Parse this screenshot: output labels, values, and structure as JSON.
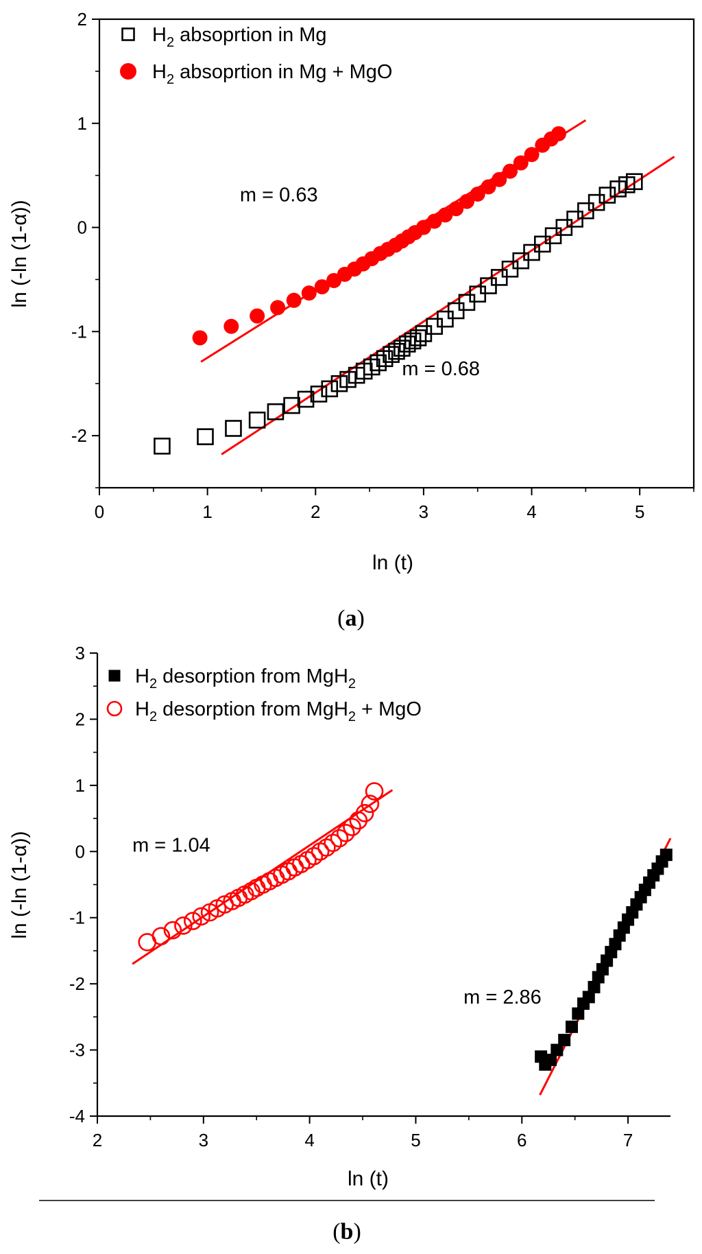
{
  "chart_data": [
    {
      "type": "scatter",
      "panel_label": {
        "open": "(",
        "letter": "a",
        "close": ")"
      },
      "xlabel": "ln (t)",
      "ylabel": "ln (-ln (1-α))",
      "xlim": [
        0,
        5.5
      ],
      "ylim": [
        -2.5,
        2
      ],
      "xticks": [
        0,
        1,
        2,
        3,
        4,
        5
      ],
      "yticks": [
        -2,
        -1,
        0,
        1,
        2
      ],
      "xtick_labels": [
        "0",
        "1",
        "2",
        "3",
        "4",
        "5"
      ],
      "ytick_labels": [
        "-2",
        "-1",
        "0",
        "1",
        "2"
      ],
      "legend_position": "top-left",
      "series": [
        {
          "name": "H2 absoprtion in Mg",
          "legend": {
            "pre": "H",
            "sub": "2",
            "post": " absoprtion in Mg"
          },
          "marker": "open-square",
          "color": "#000000",
          "x": [
            0.58,
            0.98,
            1.24,
            1.46,
            1.63,
            1.78,
            1.91,
            2.03,
            2.13,
            2.22,
            2.3,
            2.38,
            2.45,
            2.52,
            2.58,
            2.64,
            2.7,
            2.75,
            2.8,
            2.85,
            2.9,
            2.95,
            3.0,
            3.1,
            3.2,
            3.3,
            3.4,
            3.5,
            3.6,
            3.7,
            3.8,
            3.9,
            4.0,
            4.1,
            4.2,
            4.3,
            4.4,
            4.5,
            4.6,
            4.7,
            4.8,
            4.88,
            4.95
          ],
          "y": [
            -2.1,
            -2.01,
            -1.93,
            -1.85,
            -1.77,
            -1.71,
            -1.65,
            -1.6,
            -1.55,
            -1.5,
            -1.46,
            -1.42,
            -1.38,
            -1.34,
            -1.3,
            -1.26,
            -1.22,
            -1.19,
            -1.16,
            -1.12,
            -1.09,
            -1.06,
            -1.02,
            -0.95,
            -0.88,
            -0.8,
            -0.72,
            -0.64,
            -0.56,
            -0.48,
            -0.4,
            -0.32,
            -0.24,
            -0.16,
            -0.08,
            0.0,
            0.08,
            0.16,
            0.24,
            0.31,
            0.37,
            0.41,
            0.44
          ]
        },
        {
          "name": "H2 absoprtion in Mg + MgO",
          "legend": {
            "pre": "H",
            "sub": "2",
            "post": " absoprtion in Mg + MgO"
          },
          "marker": "filled-circle",
          "color": "#ff0000",
          "x": [
            0.93,
            1.22,
            1.46,
            1.65,
            1.8,
            1.94,
            2.06,
            2.17,
            2.27,
            2.36,
            2.44,
            2.52,
            2.6,
            2.67,
            2.74,
            2.8,
            2.86,
            2.92,
            3.0,
            3.1,
            3.2,
            3.3,
            3.4,
            3.5,
            3.6,
            3.7,
            3.8,
            3.9,
            4.0,
            4.1,
            4.18,
            4.25
          ],
          "y": [
            -1.06,
            -0.95,
            -0.85,
            -0.77,
            -0.7,
            -0.63,
            -0.57,
            -0.51,
            -0.45,
            -0.4,
            -0.35,
            -0.3,
            -0.25,
            -0.21,
            -0.17,
            -0.13,
            -0.09,
            -0.05,
            0.0,
            0.06,
            0.12,
            0.18,
            0.25,
            0.32,
            0.39,
            0.46,
            0.54,
            0.62,
            0.7,
            0.79,
            0.85,
            0.9
          ]
        }
      ],
      "fit_lines": [
        {
          "series": "H2 absoprtion in Mg",
          "color": "#ff0000",
          "x": [
            1.13,
            5.32
          ],
          "y": [
            -2.18,
            0.68
          ]
        },
        {
          "series": "H2 absoprtion in Mg + MgO",
          "color": "#ff0000",
          "x": [
            0.94,
            4.5
          ],
          "y": [
            -1.29,
            1.03
          ]
        }
      ],
      "annotations": [
        {
          "text": "m = 0.63",
          "x": 1.3,
          "y": 0.25
        },
        {
          "text": "m = 0.68",
          "x": 2.8,
          "y": -1.42
        }
      ]
    },
    {
      "type": "scatter",
      "panel_label": {
        "open": "(",
        "letter": "b",
        "close": ")"
      },
      "xlabel": "ln (t)",
      "ylabel": "ln (-ln (1-α))",
      "xlim": [
        2,
        7.4
      ],
      "ylim": [
        -4,
        3
      ],
      "xticks": [
        2,
        3,
        4,
        5,
        6,
        7
      ],
      "yticks": [
        -4,
        -3,
        -2,
        -1,
        0,
        1,
        2,
        3
      ],
      "xtick_labels": [
        "2",
        "3",
        "4",
        "5",
        "6",
        "7"
      ],
      "ytick_labels": [
        "-4",
        "-3",
        "-2",
        "-1",
        "0",
        "1",
        "2",
        "3"
      ],
      "legend_position": "top-left",
      "series": [
        {
          "name": "H2 desorption from MgH2",
          "legend": {
            "pre": "H",
            "sub": "2",
            "post": " desorption from MgH",
            "sub2": "2",
            "post2": ""
          },
          "marker": "filled-square",
          "color": "#000000",
          "x": [
            6.18,
            6.22,
            6.27,
            6.33,
            6.4,
            6.47,
            6.53,
            6.58,
            6.63,
            6.68,
            6.72,
            6.76,
            6.8,
            6.84,
            6.88,
            6.92,
            6.96,
            7.0,
            7.04,
            7.08,
            7.12,
            7.16,
            7.2,
            7.24,
            7.28,
            7.32,
            7.36
          ],
          "y": [
            -3.1,
            -3.22,
            -3.15,
            -3.0,
            -2.85,
            -2.65,
            -2.45,
            -2.3,
            -2.2,
            -2.05,
            -1.9,
            -1.78,
            -1.65,
            -1.52,
            -1.4,
            -1.27,
            -1.15,
            -1.03,
            -0.92,
            -0.8,
            -0.69,
            -0.58,
            -0.47,
            -0.36,
            -0.26,
            -0.15,
            -0.05
          ]
        },
        {
          "name": "H2 desorption from MgH2 + MgO",
          "legend": {
            "pre": "H",
            "sub": "2",
            "post": " desorption from MgH",
            "sub2": "2",
            "post2": " + MgO"
          },
          "marker": "open-circle",
          "color": "#ff0000",
          "x": [
            2.47,
            2.6,
            2.71,
            2.81,
            2.9,
            2.98,
            3.06,
            3.13,
            3.2,
            3.27,
            3.33,
            3.39,
            3.45,
            3.5,
            3.56,
            3.62,
            3.68,
            3.74,
            3.8,
            3.86,
            3.92,
            3.98,
            4.04,
            4.1,
            4.16,
            4.22,
            4.28,
            4.34,
            4.4,
            4.46,
            4.52,
            4.57,
            4.61
          ],
          "y": [
            -1.37,
            -1.28,
            -1.19,
            -1.12,
            -1.05,
            -0.98,
            -0.92,
            -0.86,
            -0.8,
            -0.75,
            -0.7,
            -0.65,
            -0.6,
            -0.55,
            -0.5,
            -0.45,
            -0.4,
            -0.35,
            -0.3,
            -0.24,
            -0.19,
            -0.13,
            -0.07,
            0.0,
            0.06,
            0.13,
            0.2,
            0.28,
            0.37,
            0.47,
            0.58,
            0.72,
            0.91
          ]
        }
      ],
      "fit_lines": [
        {
          "series": "H2 desorption from MgH2",
          "color": "#ff0000",
          "x": [
            6.17,
            7.4
          ],
          "y": [
            -3.68,
            0.2
          ]
        },
        {
          "series": "H2 desorption from MgH2 + MgO",
          "color": "#ff0000",
          "x": [
            2.33,
            4.78
          ],
          "y": [
            -1.7,
            0.93
          ]
        }
      ],
      "annotations": [
        {
          "text": "m = 1.04",
          "x": 2.33,
          "y": 0.0
        },
        {
          "text": "m = 2.86",
          "x": 5.45,
          "y": -2.3
        }
      ]
    }
  ]
}
